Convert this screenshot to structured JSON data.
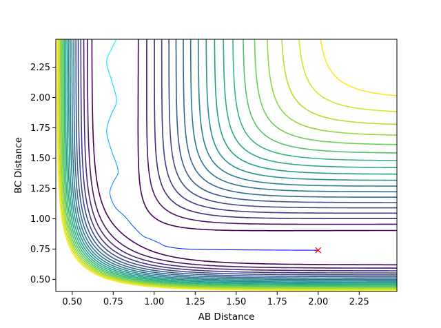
{
  "chart_data": {
    "type": "contour",
    "title": "",
    "xlabel": "AB Distance",
    "ylabel": "BC Distance",
    "xlim": [
      0.4,
      2.48
    ],
    "ylim": [
      0.4,
      2.48
    ],
    "xticks": [
      "0.50",
      "0.75",
      "1.00",
      "1.25",
      "1.50",
      "1.75",
      "2.00",
      "2.25"
    ],
    "yticks": [
      "0.50",
      "0.75",
      "1.00",
      "1.25",
      "1.50",
      "1.75",
      "2.00",
      "2.25"
    ],
    "grid": false,
    "colormap": "viridis",
    "surface": "potential energy surface contours (collinear A-B-C)",
    "contour_levels": [
      -4.4,
      -4.2,
      -4.0,
      -3.8,
      -3.6,
      -3.4,
      -3.2,
      -3.0,
      -2.8,
      -2.6,
      -2.4,
      -2.2,
      -2.0,
      -1.8,
      -1.6,
      -1.4,
      -1.2,
      -1.0,
      -0.8
    ],
    "trajectory": {
      "color_start": "#0000ff",
      "color_end": "#00ffff",
      "points": [
        [
          2.0,
          0.74
        ],
        [
          1.7,
          0.742
        ],
        [
          1.4,
          0.745
        ],
        [
          1.2,
          0.75
        ],
        [
          1.08,
          0.77
        ],
        [
          1.03,
          0.8
        ],
        [
          0.98,
          0.83
        ],
        [
          0.93,
          0.86
        ],
        [
          0.87,
          0.94
        ],
        [
          0.82,
          1.02
        ],
        [
          0.76,
          1.1
        ],
        [
          0.73,
          1.21
        ],
        [
          0.75,
          1.3
        ],
        [
          0.78,
          1.38
        ],
        [
          0.765,
          1.47
        ],
        [
          0.74,
          1.56
        ],
        [
          0.71,
          1.72
        ],
        [
          0.735,
          1.85
        ],
        [
          0.77,
          1.97
        ],
        [
          0.745,
          2.12
        ],
        [
          0.71,
          2.29
        ],
        [
          0.74,
          2.4
        ],
        [
          0.768,
          2.476
        ]
      ]
    },
    "marker": {
      "x": 2.0,
      "y": 0.74,
      "symbol": "x",
      "color": "#ff0000"
    }
  }
}
